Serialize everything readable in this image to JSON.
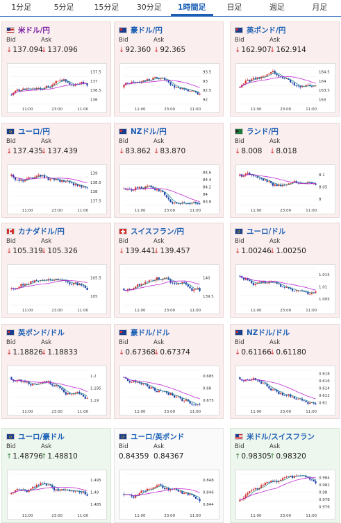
{
  "tabs": [
    "1分足",
    "5分足",
    "15分足",
    "30分足",
    "1時間足",
    "日足",
    "週足",
    "月足"
  ],
  "active_tab": 4,
  "labels": {
    "bid": "Bid",
    "ask": "Ask"
  },
  "colors": {
    "up_candle": "#d32f2f",
    "down_candle": "#1a3fa8",
    "ma_short": "#2a8a8a",
    "ma_long": "#c026d3"
  },
  "pairs": [
    {
      "name": "米ドル/円",
      "bid": "137.094",
      "ask": "137.096",
      "dir": "down",
      "theme": "red",
      "flag": "us-jp",
      "xticks": [
        "11:00",
        "23:00",
        "11:00"
      ],
      "yticks": [
        "137.5",
        "137",
        "136.5",
        "136"
      ],
      "trend": "up"
    },
    {
      "name": "豪ドル/円",
      "bid": "92.360",
      "ask": "92.365",
      "dir": "down",
      "theme": "red",
      "flag": "au-jp",
      "xticks": [
        "11:00",
        "23:00",
        "11:00"
      ],
      "yticks": [
        "93.5",
        "93",
        "92.5",
        "92"
      ],
      "trend": "updown"
    },
    {
      "name": "英ポンド/円",
      "bid": "162.907",
      "ask": "162.914",
      "dir": "down",
      "theme": "red",
      "flag": "gb-jp",
      "xticks": [
        "11:00",
        "23:00",
        "11:00"
      ],
      "yticks": [
        "164.5",
        "164",
        "163.5",
        "163"
      ],
      "trend": "updown"
    },
    {
      "name": "ユーロ/円",
      "bid": "137.435",
      "ask": "137.439",
      "dir": "down",
      "theme": "red",
      "flag": "eu-jp",
      "xticks": [
        "11:00",
        "23:00",
        "11:00"
      ],
      "yticks": [
        "139",
        "138.5",
        "138",
        "137.5"
      ],
      "trend": "down"
    },
    {
      "name": "NZドル/円",
      "bid": "83.862",
      "ask": "83.870",
      "dir": "down",
      "theme": "red",
      "flag": "nz-jp",
      "xticks": [
        "11:00",
        "23:00",
        "11:00"
      ],
      "yticks": [
        "84.6",
        "84.4",
        "84.2",
        "84",
        "83.8"
      ],
      "trend": "updown"
    },
    {
      "name": "ランド/円",
      "bid": "8.008",
      "ask": "8.018",
      "dir": "down",
      "theme": "red",
      "flag": "za-jp",
      "xticks": [
        "11:00",
        "23:00",
        "11:00"
      ],
      "yticks": [
        "8.1",
        "8.05",
        "8"
      ],
      "trend": "down"
    },
    {
      "name": "カナダドル/円",
      "bid": "105.319",
      "ask": "105.326",
      "dir": "down",
      "theme": "red",
      "flag": "ca-jp",
      "xticks": [
        "11:00",
        "23:00",
        "11:00"
      ],
      "yticks": [
        "105.5",
        "105"
      ],
      "trend": "updown"
    },
    {
      "name": "スイスフラン/円",
      "bid": "139.441",
      "ask": "139.457",
      "dir": "down",
      "theme": "red",
      "flag": "ch-jp",
      "xticks": [
        "11:00",
        "23:00",
        "11:00"
      ],
      "yticks": [
        "140",
        "139.5"
      ],
      "trend": "updown"
    },
    {
      "name": "ユーロ/ドル",
      "bid": "1.00246",
      "ask": "1.00250",
      "dir": "down",
      "theme": "red",
      "flag": "eu-us",
      "xticks": [
        "11:00",
        "23:00",
        "11:00"
      ],
      "yticks": [
        "1.015",
        "1.01",
        "1.005"
      ],
      "trend": "down"
    },
    {
      "name": "英ポンド/ドル",
      "bid": "1.18826",
      "ask": "1.18833",
      "dir": "down",
      "theme": "red",
      "flag": "gb-us",
      "xticks": [
        "11:00",
        "23:00",
        "11:00"
      ],
      "yticks": [
        "1.2",
        "1.195",
        "1.19"
      ],
      "trend": "down"
    },
    {
      "name": "豪ドル/ドル",
      "bid": "0.67368",
      "ask": "0.67374",
      "dir": "down",
      "theme": "red",
      "flag": "au-us",
      "xticks": [
        "11:00",
        "23:00",
        "11:00"
      ],
      "yticks": [
        "0.685",
        "0.68",
        "0.675"
      ],
      "trend": "down"
    },
    {
      "name": "NZドル/ドル",
      "bid": "0.61166",
      "ask": "0.61180",
      "dir": "down",
      "theme": "red",
      "flag": "nz-us",
      "xticks": [
        "11:00",
        "23:00",
        "11:00"
      ],
      "yticks": [
        "0.618",
        "0.616",
        "0.614",
        "0.612",
        "0.61"
      ],
      "trend": "down"
    },
    {
      "name": "ユーロ/豪ドル",
      "bid": "1.48796",
      "ask": "1.48810",
      "dir": "up",
      "theme": "green",
      "flag": "eu-au",
      "xticks": [
        "11:00",
        "23:00",
        "11:00"
      ],
      "yticks": [
        "1.495",
        "1.49",
        "1.485"
      ],
      "trend": "updown"
    },
    {
      "name": "ユーロ/英ポンド",
      "bid": "0.84359",
      "ask": "0.84367",
      "dir": "none",
      "theme": "white",
      "flag": "eu-gb",
      "xticks": [
        "11:00",
        "23:00",
        "11:00"
      ],
      "yticks": [
        "0.848",
        "0.846",
        "0.844"
      ],
      "trend": "updown"
    },
    {
      "name": "米ドル/スイスフラン",
      "bid": "0.98305",
      "ask": "0.98320",
      "dir": "up",
      "theme": "green",
      "flag": "us-ch",
      "xticks": [
        "11:00",
        "23:00",
        "11:00"
      ],
      "yticks": [
        "0.984",
        "0.982",
        "0.98",
        "0.978",
        "0.976"
      ],
      "trend": "up"
    }
  ]
}
